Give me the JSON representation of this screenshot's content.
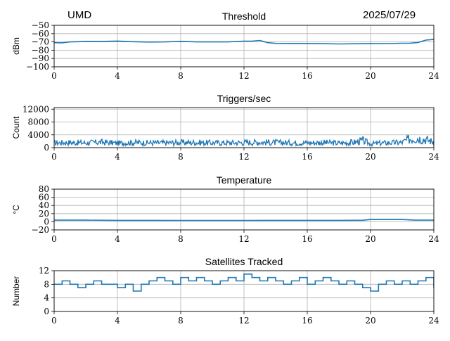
{
  "header": {
    "station": "UMD",
    "date": "2025/07/29"
  },
  "chart_data": [
    {
      "type": "line",
      "title": "Threshold",
      "ylabel": "dBm",
      "xlabel": "",
      "xlim": [
        0,
        24
      ],
      "ylim": [
        -100,
        -50
      ],
      "xticks": [
        "0",
        "4",
        "8",
        "12",
        "16",
        "20",
        "24"
      ],
      "yticks": [
        "−50",
        "−60",
        "−70",
        "−80",
        "−90",
        "−100"
      ],
      "ytick_values": [
        -50,
        -60,
        -70,
        -80,
        -90,
        -100
      ],
      "grid": true,
      "color": "#1f77b4",
      "x": [
        0,
        0.5,
        1,
        1.5,
        2,
        3,
        4,
        5,
        6,
        7,
        8,
        9,
        10,
        11,
        12,
        12.5,
        13,
        13.5,
        14,
        15,
        16,
        17,
        18,
        19,
        20,
        21,
        22,
        22.5,
        23,
        23.5,
        24
      ],
      "values": [
        -71,
        -70.8,
        -70,
        -69.5,
        -69.3,
        -69.5,
        -69.3,
        -70,
        -69.8,
        -70,
        -69.6,
        -69.8,
        -70,
        -69.8,
        -69.3,
        -69,
        -68,
        -71,
        -72,
        -72,
        -72.1,
        -72,
        -72.2,
        -72,
        -72,
        -71.8,
        -71.5,
        -71.2,
        -70.5,
        -68,
        -67
      ]
    },
    {
      "type": "line",
      "title": "Triggers/sec",
      "ylabel": "Count",
      "xlabel": "",
      "xlim": [
        0,
        24
      ],
      "ylim": [
        0,
        12500
      ],
      "xticks": [
        "0",
        "4",
        "8",
        "12",
        "16",
        "20",
        "24"
      ],
      "yticks": [
        "12000",
        "8000",
        "4000",
        "0"
      ],
      "ytick_values": [
        12000,
        8000,
        4000,
        0
      ],
      "grid": true,
      "color": "#1f77b4",
      "x": [
        0,
        1,
        2,
        3,
        4,
        5,
        6,
        7,
        8,
        9,
        10,
        11,
        12,
        13,
        14,
        15,
        16,
        17,
        18,
        19,
        19.5,
        20,
        21,
        22,
        22.5,
        23,
        23.5,
        24
      ],
      "values": [
        1500,
        1600,
        1500,
        1700,
        1400,
        1600,
        1500,
        1500,
        1600,
        1600,
        1500,
        1500,
        1600,
        1700,
        1600,
        1500,
        1500,
        1600,
        1400,
        1700,
        2200,
        1200,
        1500,
        1600,
        2800,
        3000,
        2500,
        1800
      ]
    },
    {
      "type": "line",
      "title": "Temperature",
      "ylabel": "°C",
      "xlabel": "",
      "xlim": [
        0,
        24
      ],
      "ylim": [
        -20,
        80
      ],
      "xticks": [
        "0",
        "4",
        "8",
        "12",
        "16",
        "20",
        "24"
      ],
      "yticks": [
        "80",
        "60",
        "40",
        "20",
        "0",
        "−20"
      ],
      "ytick_values": [
        80,
        60,
        40,
        20,
        0,
        -20
      ],
      "grid": true,
      "color": "#1f77b4",
      "x": [
        0,
        2,
        4,
        6,
        8,
        10,
        12,
        14,
        16,
        18,
        19.5,
        20,
        22,
        22.8,
        24
      ],
      "values": [
        4,
        4,
        3.5,
        3.5,
        3.2,
        3.2,
        3.3,
        3.5,
        3.5,
        3.5,
        3.6,
        5.5,
        5.5,
        4,
        4
      ]
    },
    {
      "type": "line",
      "title": "Satellites Tracked",
      "ylabel": "Number",
      "xlabel": "",
      "xlim": [
        0,
        24
      ],
      "ylim": [
        0,
        12
      ],
      "xticks": [
        "0",
        "4",
        "8",
        "12",
        "16",
        "20",
        "24"
      ],
      "yticks": [
        "12",
        "8",
        "4",
        "0"
      ],
      "ytick_values": [
        12,
        8,
        4,
        0
      ],
      "grid": true,
      "color": "#1f77b4",
      "x": [
        0,
        0.5,
        1,
        1.5,
        2,
        2.5,
        3,
        3.5,
        4,
        4.5,
        5,
        5.5,
        6,
        6.5,
        7,
        7.5,
        8,
        8.5,
        9,
        9.5,
        10,
        10.5,
        11,
        11.5,
        12,
        12.5,
        13,
        13.5,
        14,
        14.5,
        15,
        15.5,
        16,
        16.5,
        17,
        17.5,
        18,
        18.5,
        19,
        19.5,
        20,
        20.5,
        21,
        21.5,
        22,
        22.5,
        23,
        23.5,
        24
      ],
      "values": [
        8,
        9,
        8,
        7,
        8,
        9,
        8,
        8,
        7,
        8,
        6,
        8,
        9,
        10,
        9,
        8,
        10,
        9,
        10,
        9,
        8,
        9,
        10,
        9,
        11,
        10,
        9,
        10,
        9,
        8,
        9,
        10,
        8,
        9,
        10,
        9,
        8,
        9,
        8,
        7,
        6,
        8,
        9,
        8,
        9,
        8,
        9,
        10,
        7
      ]
    }
  ]
}
